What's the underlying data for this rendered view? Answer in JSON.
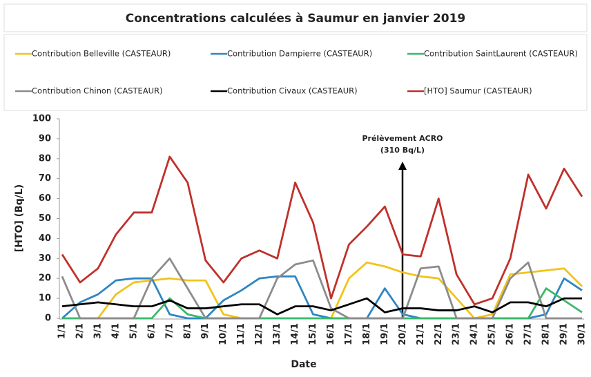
{
  "chart_data": {
    "type": "line",
    "title": "Concentrations calculées à Saumur en janvier 2019",
    "x_label": "Date",
    "y_label": "[HTO] (Bq/L)",
    "annotation": [
      "Prélèvement ACRO",
      "(310 Bq/L)"
    ],
    "categories": [
      "1/1",
      "2/1",
      "3/1",
      "4/1",
      "5/1",
      "6/1",
      "7/1",
      "8/1",
      "9/1",
      "10/1",
      "11/1",
      "12/1",
      "13/1",
      "14/1",
      "15/1",
      "16/1",
      "17/1",
      "18/1",
      "19/1",
      "20/1",
      "21/1",
      "22/1",
      "23/1",
      "24/1",
      "25/1",
      "26/1",
      "27/1",
      "28/1",
      "29/1",
      "30/1"
    ],
    "ylim": [
      0,
      100
    ],
    "yticks": [
      0,
      10,
      20,
      30,
      40,
      50,
      60,
      70,
      80,
      90,
      100
    ],
    "grid": false,
    "series": [
      {
        "name": "Contribution Belleville (CASTEAUR)",
        "color": "#f2c31b",
        "values": [
          0,
          0,
          0,
          12,
          18,
          19,
          20,
          19,
          19,
          2,
          0,
          0,
          0,
          0,
          0,
          0,
          20,
          28,
          26,
          23,
          21,
          20,
          10,
          0,
          2,
          22,
          23,
          24,
          25,
          16
        ]
      },
      {
        "name": "Contribution Dampierre (CASTEAUR)",
        "color": "#2f86c3",
        "values": [
          0,
          8,
          12,
          19,
          20,
          20,
          2,
          0,
          0,
          9,
          14,
          20,
          21,
          21,
          2,
          0,
          0,
          0,
          15,
          2,
          0,
          0,
          0,
          0,
          0,
          0,
          0,
          2,
          20,
          14
        ]
      },
      {
        "name": "Contribution SaintLaurent (CASTEAUR)",
        "color": "#3cb86c",
        "values": [
          0,
          0,
          0,
          0,
          0,
          0,
          10,
          2,
          0,
          0,
          0,
          0,
          0,
          0,
          0,
          0,
          0,
          0,
          0,
          0,
          0,
          0,
          0,
          0,
          0,
          0,
          0,
          15,
          9,
          3
        ]
      },
      {
        "name": "Contribution Chinon (CASTEAUR)",
        "color": "#8c8c8c",
        "values": [
          21,
          0,
          0,
          0,
          0,
          20,
          30,
          15,
          0,
          0,
          0,
          0,
          20,
          27,
          29,
          5,
          0,
          0,
          0,
          0,
          25,
          26,
          0,
          0,
          0,
          20,
          28,
          0,
          0,
          0
        ]
      },
      {
        "name": "Contribution Civaux (CASTEAUR)",
        "color": "#000000",
        "values": [
          6,
          7,
          8,
          7,
          6,
          6,
          9,
          5,
          5,
          6,
          7,
          7,
          2,
          6,
          6,
          4,
          7,
          10,
          3,
          5,
          5,
          4,
          4,
          6,
          3,
          8,
          8,
          6,
          10,
          10
        ]
      },
      {
        "name": "[HTO] Saumur (CASTEAUR)",
        "color": "#c0302b",
        "values": [
          32,
          18,
          25,
          42,
          53,
          53,
          81,
          68,
          29,
          18,
          30,
          34,
          30,
          68,
          48,
          10,
          37,
          46,
          56,
          32,
          31,
          60,
          22,
          7,
          10,
          30,
          72,
          55,
          75,
          61
        ]
      }
    ]
  }
}
